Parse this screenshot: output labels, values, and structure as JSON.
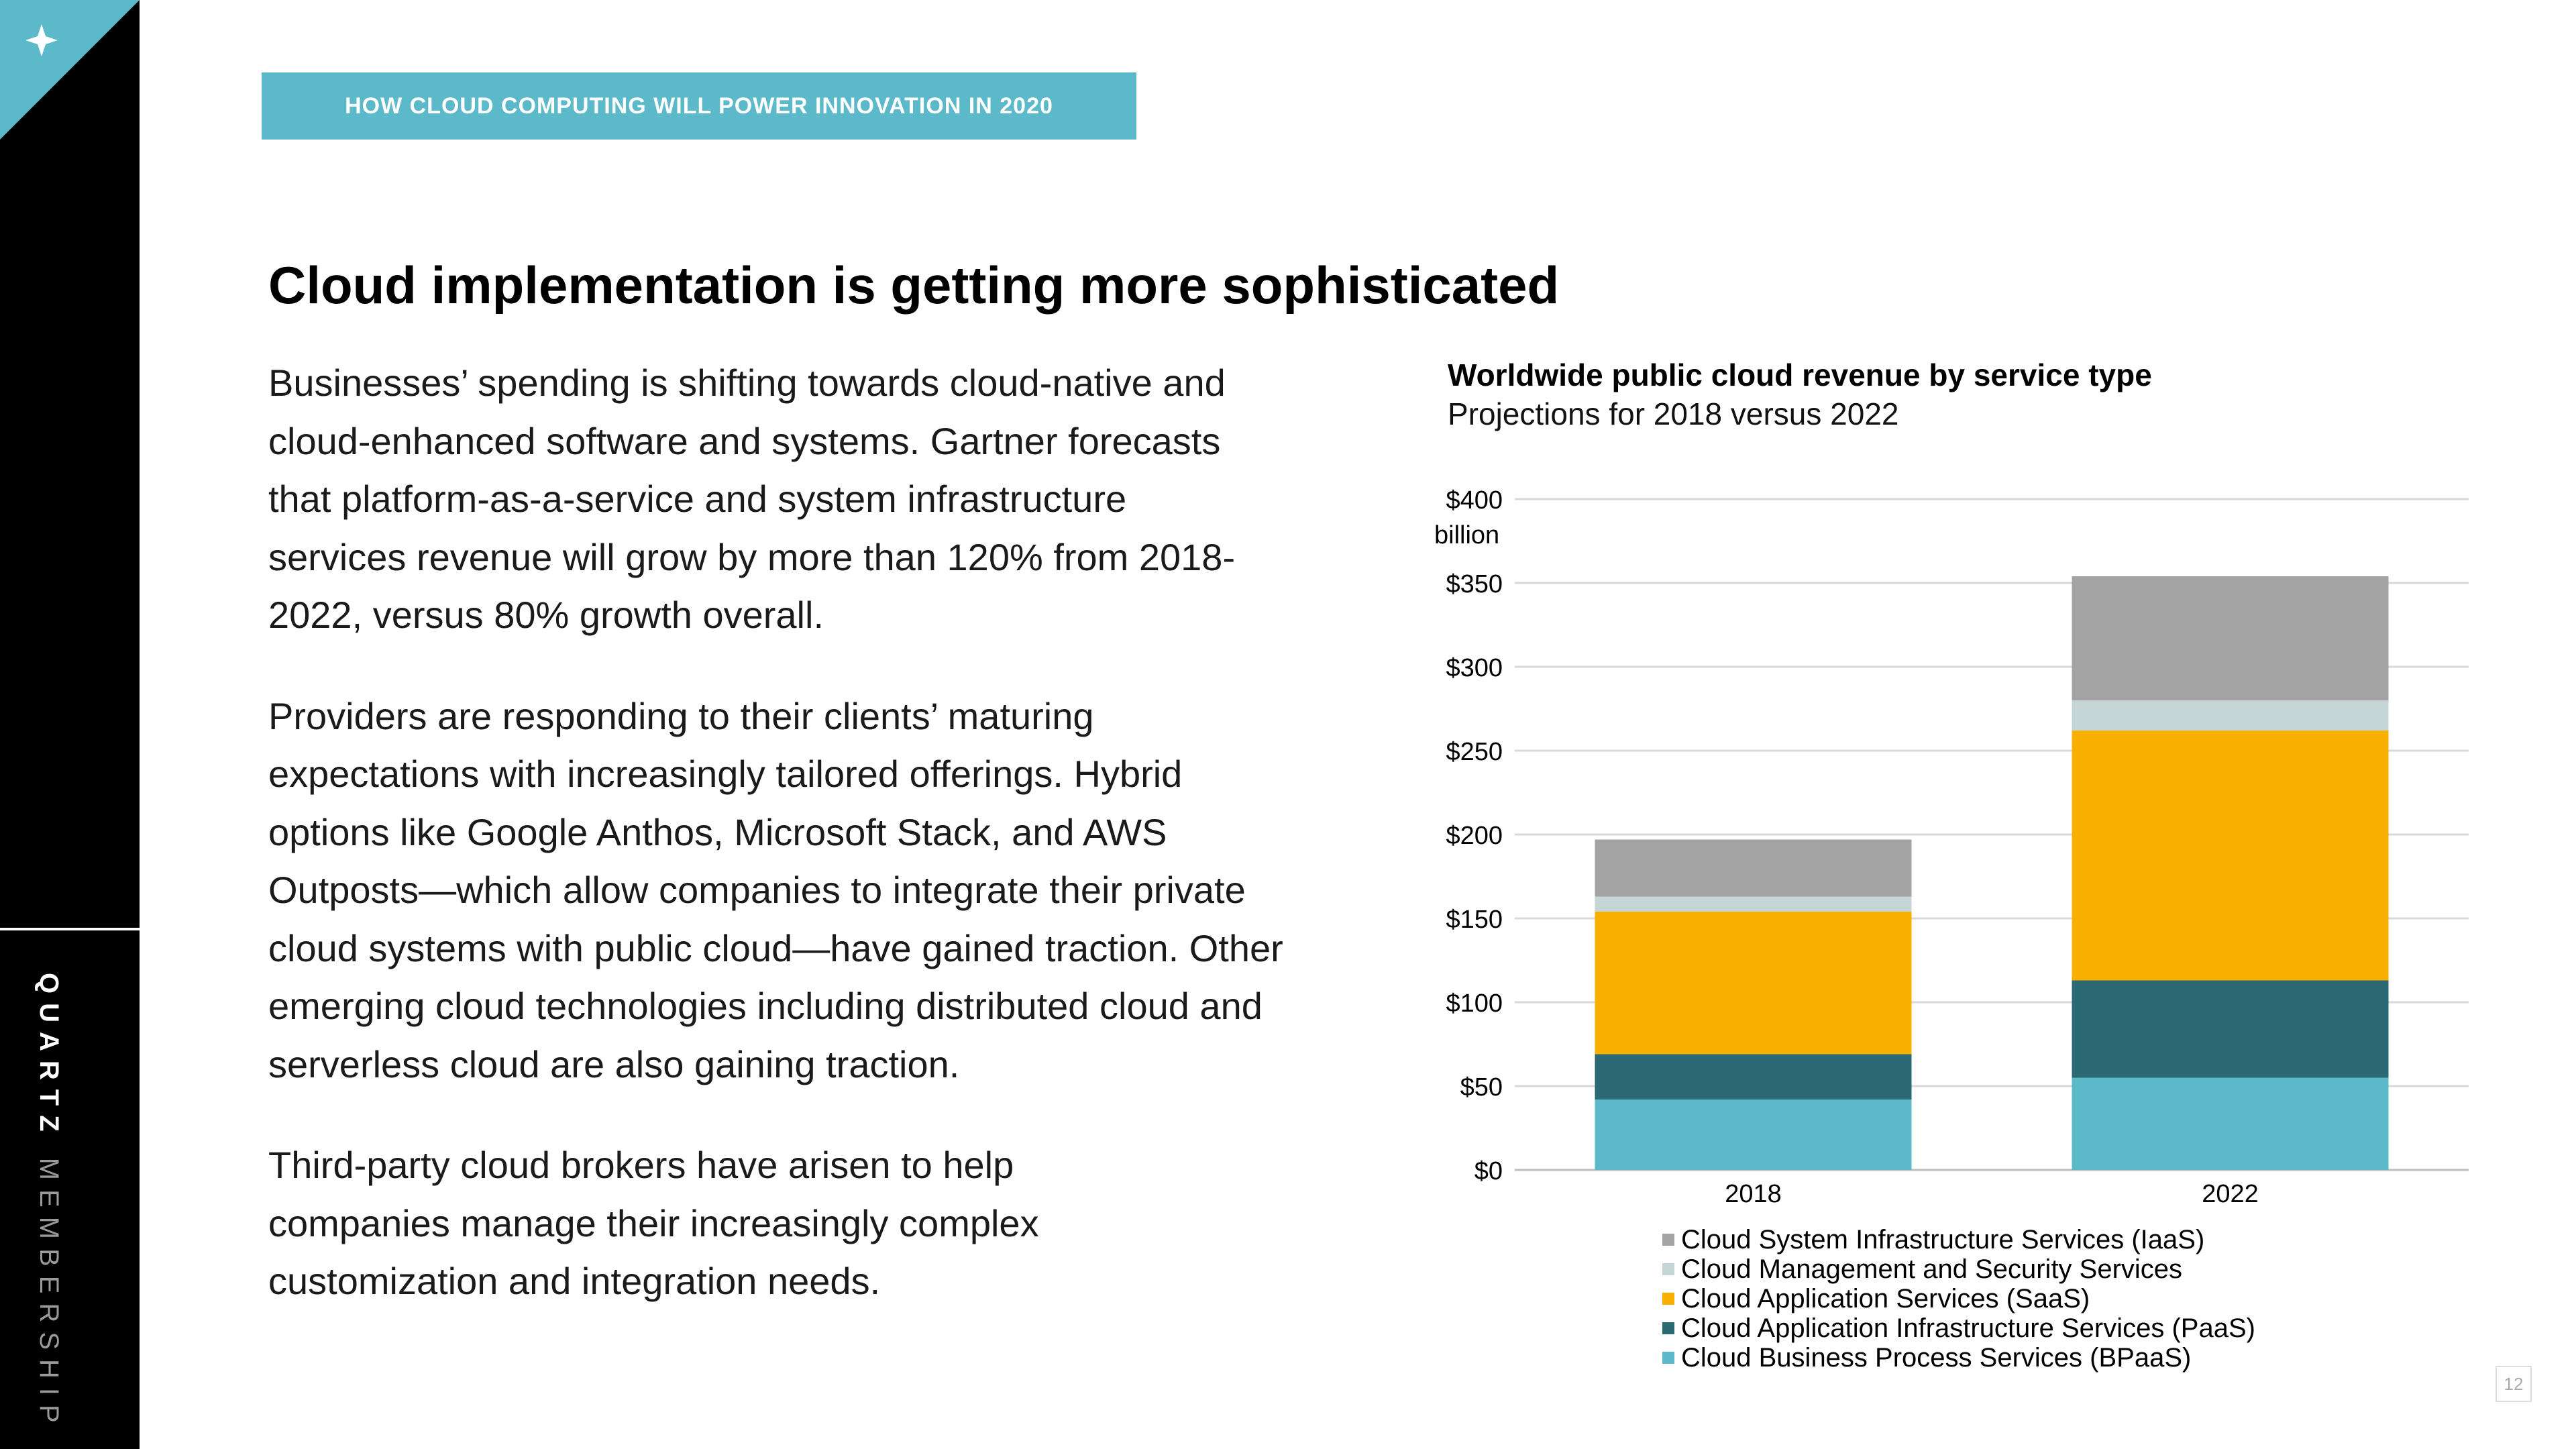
{
  "sidebar": {
    "brand_bold": "QUARTZ",
    "brand_light": "MEMBERSHIP",
    "corner_icon": "sparkle-icon"
  },
  "kicker": {
    "label": "HOW CLOUD COMPUTING WILL POWER INNOVATION IN 2020"
  },
  "headline": "Cloud implementation is getting more sophisticated",
  "paragraphs": [
    "Businesses’ spending is shifting towards cloud-native and cloud-enhanced software and systems. Gartner forecasts that platform-as-a-service and system infrastructure services revenue will grow by more than 120% from 2018-2022, versus 80% growth overall.",
    "Providers are responding to their clients’ maturing expectations with increasingly tailored offerings. Hybrid options like Google Anthos, Microsoft Stack, and AWS Outposts—which allow companies to integrate their private cloud systems with public cloud—have gained traction. Other emerging cloud technologies including distributed cloud and serverless cloud are also gaining traction.",
    "Third-party cloud brokers have arisen to help companies manage their increasingly complex customization and integration needs."
  ],
  "chart_data": {
    "type": "bar",
    "stacked": true,
    "title": "Worldwide public cloud revenue by service type",
    "subtitle": "Projections for 2018 versus 2022",
    "ylabel": "billion",
    "ylim": [
      0,
      400
    ],
    "yticks": [
      "$0",
      "$50",
      "$100",
      "$150",
      "$200",
      "$250",
      "$300",
      "$350",
      "$400"
    ],
    "categories": [
      "2018",
      "2022"
    ],
    "grid": true,
    "legend_position": "bottom",
    "series": [
      {
        "name": "Cloud Business Process Services (BPaaS)",
        "color": "#5cb9c9",
        "values": [
          42,
          55
        ]
      },
      {
        "name": "Cloud Application Infrastructure Services (PaaS)",
        "color": "#2b6a74",
        "values": [
          27,
          58
        ]
      },
      {
        "name": "Cloud Application Services (SaaS)",
        "color": "#f8b000",
        "values": [
          85,
          149
        ]
      },
      {
        "name": "Cloud Management and Security Services",
        "color": "#c6d6d6",
        "values": [
          9,
          18
        ]
      },
      {
        "name": "Cloud System Infrastructure Services (IaaS)",
        "color": "#a3a3a3",
        "values": [
          34,
          74
        ]
      }
    ]
  },
  "page_number": "12"
}
